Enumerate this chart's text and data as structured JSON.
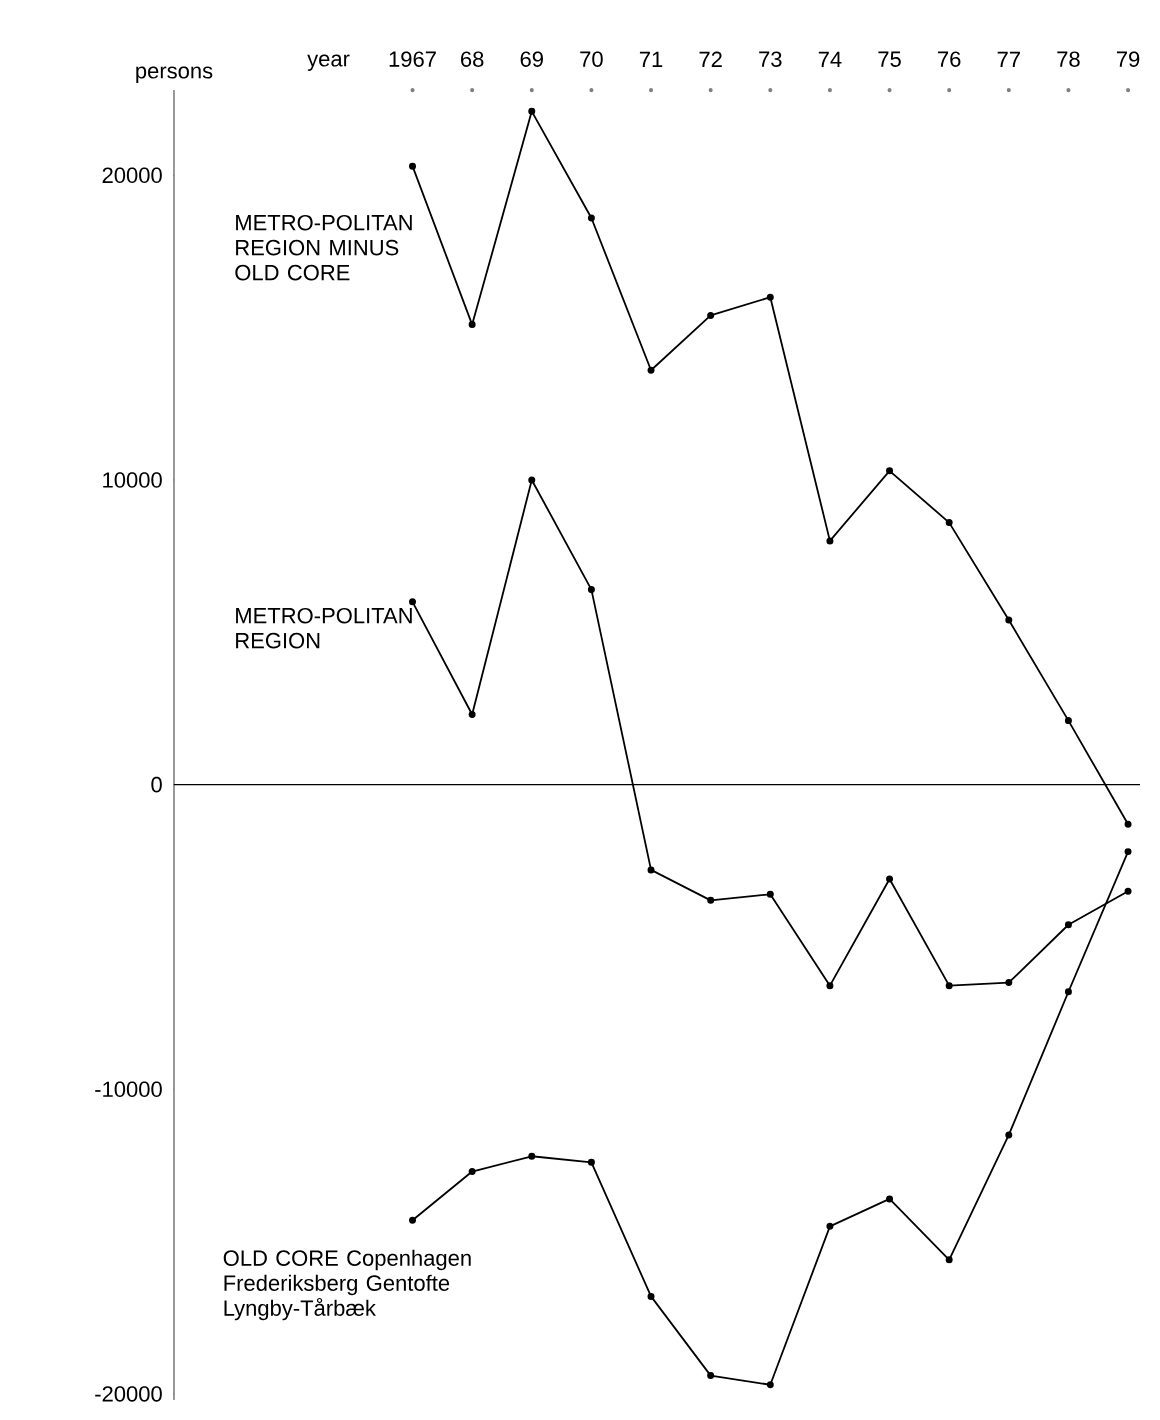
{
  "chart_data": {
    "type": "line",
    "xlabel": "year",
    "ylabel": "persons",
    "x": [
      1967,
      1968,
      1969,
      1970,
      1971,
      1972,
      1973,
      1974,
      1975,
      1976,
      1977,
      1978,
      1979
    ],
    "xlim": [
      1963,
      1979.2
    ],
    "xticks": [
      {
        "value": 1967,
        "label": "1967"
      },
      {
        "value": 1968,
        "label": "68"
      },
      {
        "value": 1969,
        "label": "69"
      },
      {
        "value": 1970,
        "label": "70"
      },
      {
        "value": 1971,
        "label": "71"
      },
      {
        "value": 1972,
        "label": "72"
      },
      {
        "value": 1973,
        "label": "73"
      },
      {
        "value": 1974,
        "label": "74"
      },
      {
        "value": 1975,
        "label": "75"
      },
      {
        "value": 1976,
        "label": "76"
      },
      {
        "value": 1977,
        "label": "77"
      },
      {
        "value": 1978,
        "label": "78"
      },
      {
        "value": 1979,
        "label": "79"
      }
    ],
    "ylim": [
      -20200,
      22800
    ],
    "yticks": [
      -20000,
      -10000,
      0,
      10000,
      20000
    ],
    "marker": "circle",
    "line_style": "solid",
    "ref_lines": [
      {
        "axis": "y",
        "value": 0
      }
    ],
    "series": [
      {
        "name": "METRO-POLITAN REGION MINUS OLD CORE",
        "color": "#000000",
        "values": [
          20300,
          15100,
          22100,
          18600,
          13600,
          15400,
          16000,
          8000,
          10300,
          8600,
          5400,
          2100,
          -1300
        ]
      },
      {
        "name": "METRO-POLITAN REGION",
        "color": "#000000",
        "values": [
          6000,
          2300,
          10000,
          6400,
          -2800,
          -3800,
          -3600,
          -6600,
          -3100,
          -6600,
          -6500,
          -4600,
          -3500
        ]
      },
      {
        "name": "OLD CORE Copenhagen Frederiksberg Gentofte Lyngby-Tårbæk",
        "color": "#000000",
        "values": [
          -14300,
          -12700,
          -12200,
          -12400,
          -16800,
          -19400,
          -19700,
          -14500,
          -13600,
          -15600,
          -11500,
          -6800,
          -2200
        ]
      }
    ]
  }
}
